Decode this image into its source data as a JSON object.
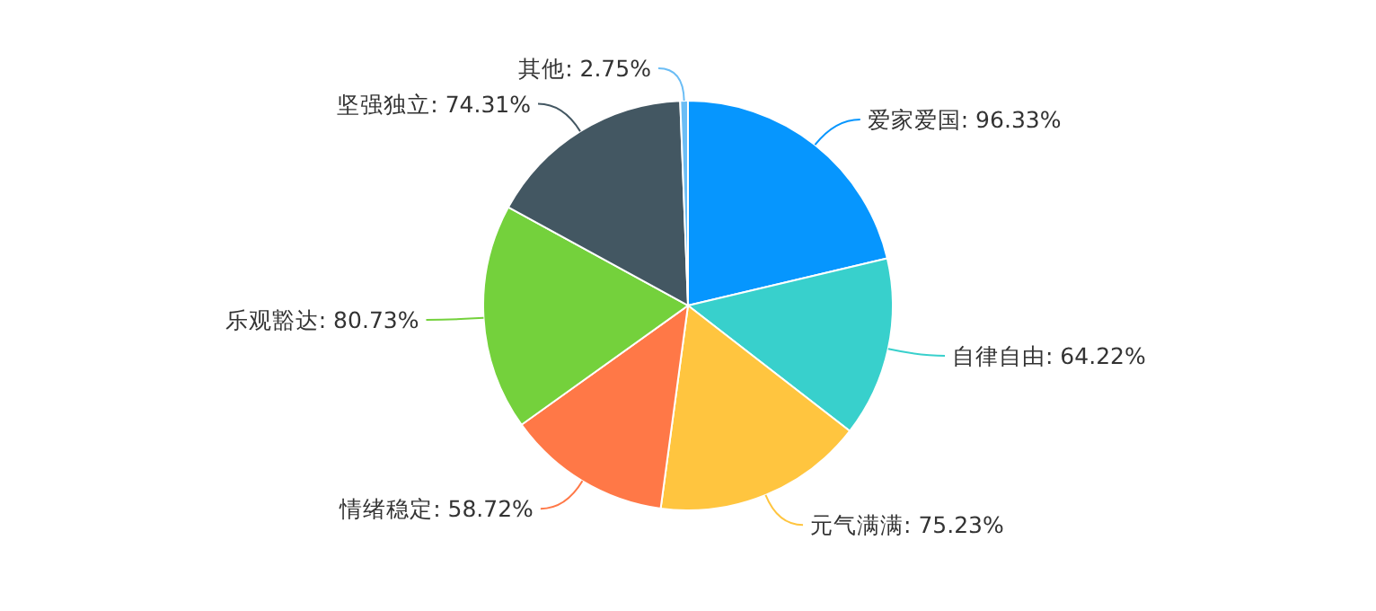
{
  "chart_data": {
    "type": "pie",
    "categories": [
      "爱家爱国",
      "自律自由",
      "元气满满",
      "情绪稳定",
      "乐观豁达",
      "坚强独立",
      "其他"
    ],
    "values": [
      96.33,
      64.22,
      75.23,
      58.72,
      80.73,
      74.31,
      2.75
    ],
    "value_labels": [
      "96.33%",
      "64.22%",
      "75.23%",
      "58.72%",
      "80.73%",
      "74.31%",
      "2.75%"
    ],
    "colors": [
      "#0696fe",
      "#38d0cc",
      "#ffc53f",
      "#ff7847",
      "#74d13c",
      "#435762",
      "#6bbdf5"
    ],
    "legend": false
  }
}
